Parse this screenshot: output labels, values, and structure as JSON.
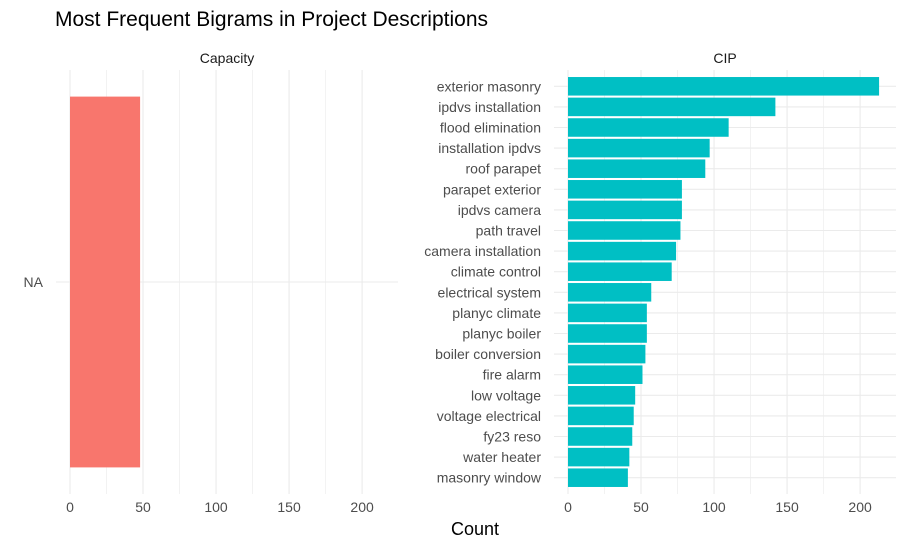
{
  "title": "Most Frequent Bigrams in Project Descriptions",
  "chart_data": {
    "type": "bar",
    "orientation": "horizontal",
    "title": "Most Frequent Bigrams in Project Descriptions",
    "xlabel": "Count",
    "ylabel": "",
    "grid": true,
    "legend": "none",
    "xlim": [
      0,
      220
    ],
    "xticks": [
      0,
      50,
      100,
      150,
      200
    ],
    "panels": [
      {
        "name": "Capacity",
        "color": "#F8766D",
        "categories": [
          "NA"
        ],
        "values": [
          48
        ]
      },
      {
        "name": "CIP",
        "color": "#00BFC4",
        "categories": [
          "exterior masonry",
          "ipdvs installation",
          "flood elimination",
          "installation ipdvs",
          "roof parapet",
          "parapet exterior",
          "ipdvs camera",
          "path travel",
          "camera installation",
          "climate control",
          "electrical system",
          "planyc climate",
          "planyc boiler",
          "boiler conversion",
          "fire alarm",
          "low voltage",
          "voltage electrical",
          "fy23 reso",
          "water heater",
          "masonry window"
        ],
        "values": [
          213,
          142,
          110,
          97,
          94,
          78,
          78,
          77,
          74,
          71,
          57,
          54,
          54,
          53,
          51,
          46,
          45,
          44,
          42,
          41
        ]
      }
    ]
  }
}
